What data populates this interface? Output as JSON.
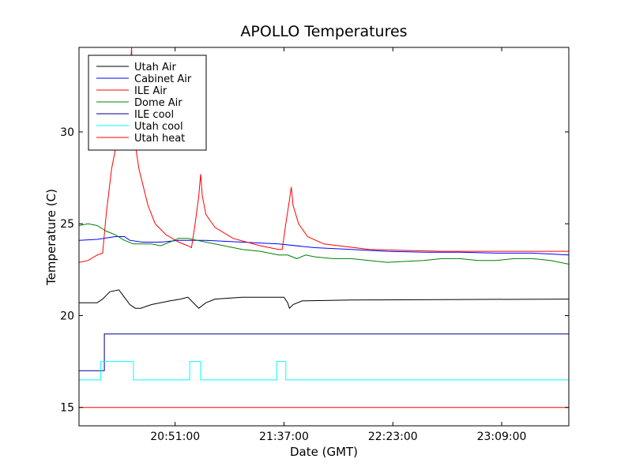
{
  "chart_data": {
    "type": "line",
    "title": "APOLLO Temperatures",
    "xlabel": "Date (GMT)",
    "ylabel": "Temperature (C)",
    "xlim": [
      0,
      270
    ],
    "ylim": [
      14,
      34.6
    ],
    "xticks": [
      {
        "value": 53,
        "label": "20:51:00"
      },
      {
        "value": 113,
        "label": "21:37:00"
      },
      {
        "value": 173,
        "label": "22:23:00"
      },
      {
        "value": 233,
        "label": "23:09:00"
      }
    ],
    "yticks": [
      {
        "value": 15,
        "label": "15"
      },
      {
        "value": 20,
        "label": "20"
      },
      {
        "value": 25,
        "label": "25"
      },
      {
        "value": 30,
        "label": "30"
      }
    ],
    "legend_position": "top-left",
    "series": [
      {
        "name": "Utah Air",
        "color": "#000000",
        "points": [
          [
            0,
            20.7
          ],
          [
            10,
            20.7
          ],
          [
            13,
            20.9
          ],
          [
            17,
            21.3
          ],
          [
            22,
            21.4
          ],
          [
            25,
            21.0
          ],
          [
            28,
            20.6
          ],
          [
            31,
            20.4
          ],
          [
            34,
            20.4
          ],
          [
            40,
            20.6
          ],
          [
            50,
            20.8
          ],
          [
            56,
            20.9
          ],
          [
            60,
            21.0
          ],
          [
            62,
            20.8
          ],
          [
            65,
            20.5
          ],
          [
            66,
            20.4
          ],
          [
            70,
            20.7
          ],
          [
            75,
            20.9
          ],
          [
            90,
            21.0
          ],
          [
            110,
            21.0
          ],
          [
            113,
            21.0
          ],
          [
            115,
            20.7
          ],
          [
            116,
            20.4
          ],
          [
            118,
            20.6
          ],
          [
            123,
            20.8
          ],
          [
            150,
            20.85
          ],
          [
            270,
            20.9
          ]
        ]
      },
      {
        "name": "Cabinet Air",
        "color": "#0000ff",
        "points": [
          [
            0,
            24.1
          ],
          [
            10,
            24.15
          ],
          [
            20,
            24.3
          ],
          [
            25,
            24.3
          ],
          [
            28,
            24.1
          ],
          [
            35,
            24.0
          ],
          [
            45,
            24.0
          ],
          [
            55,
            24.1
          ],
          [
            70,
            24.1
          ],
          [
            90,
            24.0
          ],
          [
            110,
            23.9
          ],
          [
            130,
            23.7
          ],
          [
            150,
            23.6
          ],
          [
            170,
            23.5
          ],
          [
            190,
            23.45
          ],
          [
            210,
            23.45
          ],
          [
            230,
            23.4
          ],
          [
            250,
            23.4
          ],
          [
            270,
            23.3
          ]
        ]
      },
      {
        "name": "ILE Air",
        "color": "#ff0000",
        "points": [
          [
            0,
            22.9
          ],
          [
            5,
            23.0
          ],
          [
            10,
            23.3
          ],
          [
            13,
            23.4
          ],
          [
            15,
            25.5
          ],
          [
            18,
            28.0
          ],
          [
            22,
            30.0
          ],
          [
            24,
            30.5
          ],
          [
            28,
            33.0
          ],
          [
            29,
            34.6
          ],
          [
            30,
            30.0
          ],
          [
            33,
            28.0
          ],
          [
            38,
            26.0
          ],
          [
            42,
            25.0
          ],
          [
            48,
            24.4
          ],
          [
            55,
            24.0
          ],
          [
            60,
            23.8
          ],
          [
            62,
            23.7
          ],
          [
            64,
            25.0
          ],
          [
            66,
            26.5
          ],
          [
            67,
            27.7
          ],
          [
            68,
            26.5
          ],
          [
            70,
            25.5
          ],
          [
            75,
            24.8
          ],
          [
            85,
            24.2
          ],
          [
            100,
            23.8
          ],
          [
            110,
            23.6
          ],
          [
            112,
            23.6
          ],
          [
            114,
            25.0
          ],
          [
            116,
            26.3
          ],
          [
            117,
            27.0
          ],
          [
            118,
            26.0
          ],
          [
            121,
            25.0
          ],
          [
            126,
            24.3
          ],
          [
            135,
            23.9
          ],
          [
            160,
            23.6
          ],
          [
            200,
            23.5
          ],
          [
            230,
            23.5
          ],
          [
            270,
            23.5
          ]
        ]
      },
      {
        "name": "Dome Air",
        "color": "#008000",
        "points": [
          [
            0,
            24.9
          ],
          [
            5,
            25.0
          ],
          [
            10,
            24.9
          ],
          [
            15,
            24.6
          ],
          [
            20,
            24.4
          ],
          [
            25,
            24.1
          ],
          [
            30,
            23.9
          ],
          [
            40,
            23.9
          ],
          [
            45,
            23.8
          ],
          [
            50,
            24.0
          ],
          [
            55,
            24.2
          ],
          [
            60,
            24.2
          ],
          [
            70,
            24.0
          ],
          [
            80,
            23.8
          ],
          [
            90,
            23.6
          ],
          [
            100,
            23.5
          ],
          [
            110,
            23.3
          ],
          [
            115,
            23.3
          ],
          [
            120,
            23.1
          ],
          [
            125,
            23.3
          ],
          [
            130,
            23.2
          ],
          [
            140,
            23.1
          ],
          [
            150,
            23.1
          ],
          [
            160,
            23.0
          ],
          [
            170,
            22.9
          ],
          [
            180,
            22.95
          ],
          [
            190,
            23.0
          ],
          [
            200,
            23.1
          ],
          [
            210,
            23.1
          ],
          [
            220,
            23.0
          ],
          [
            230,
            23.0
          ],
          [
            240,
            23.1
          ],
          [
            250,
            23.1
          ],
          [
            260,
            23.0
          ],
          [
            270,
            22.8
          ]
        ]
      },
      {
        "name": "ILE cool",
        "color": "#00008b",
        "points": [
          [
            0,
            17.0
          ],
          [
            14,
            17.0
          ],
          [
            14,
            19.0
          ],
          [
            270,
            19.0
          ]
        ]
      },
      {
        "name": "Utah cool",
        "color": "#00ffff",
        "points": [
          [
            0,
            16.5
          ],
          [
            12,
            16.5
          ],
          [
            12,
            17.5
          ],
          [
            30,
            17.5
          ],
          [
            30,
            16.5
          ],
          [
            61,
            16.5
          ],
          [
            61,
            17.5
          ],
          [
            67,
            17.5
          ],
          [
            67,
            16.5
          ],
          [
            109,
            16.5
          ],
          [
            109,
            17.5
          ],
          [
            114,
            17.5
          ],
          [
            114,
            16.5
          ],
          [
            270,
            16.5
          ]
        ]
      },
      {
        "name": "Utah heat",
        "color": "#ff0000",
        "points": [
          [
            0,
            15.0
          ],
          [
            270,
            15.0
          ]
        ]
      }
    ]
  }
}
